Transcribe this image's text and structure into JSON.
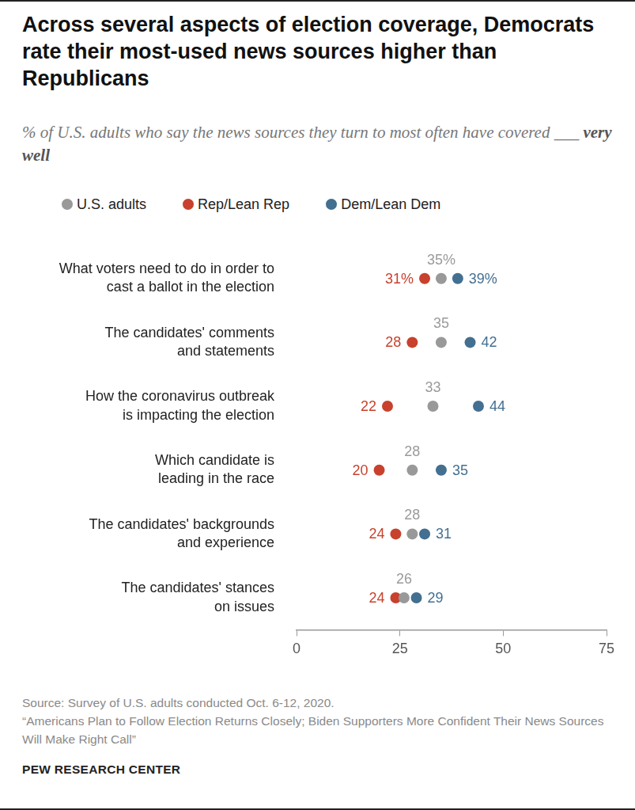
{
  "chart_data": {
    "type": "dot",
    "title": "Across several aspects of election coverage, Democrats rate their most-used news sources higher than Republicans",
    "subtitle": [
      "% of U.S. adults who say the news sources they turn to most often have covered ___",
      "very well"
    ],
    "categories": [
      "What voters need to do in order to\ncast a ballot in the election",
      "The candidates' comments\nand statements",
      "How the coronavirus outbreak\nis impacting the election",
      "Which candidate is\nleading in the race",
      "The candidates' backgrounds\nand experience",
      "The candidates' stances\non issues"
    ],
    "series": [
      {
        "name": "U.S. adults",
        "color": "#999999",
        "values": [
          35,
          35,
          33,
          28,
          28,
          26
        ],
        "value_labels": [
          "35%",
          "35",
          "33",
          "28",
          "28",
          "26"
        ]
      },
      {
        "name": "Rep/Lean Rep",
        "color": "#c8412d",
        "values": [
          31,
          28,
          22,
          20,
          24,
          24
        ],
        "value_labels": [
          "31%",
          "28",
          "22",
          "20",
          "24",
          "24"
        ]
      },
      {
        "name": "Dem/Lean Dem",
        "color": "#436f91",
        "values": [
          39,
          42,
          44,
          35,
          31,
          29
        ],
        "value_labels": [
          "39%",
          "42",
          "44",
          "35",
          "31",
          "29"
        ]
      }
    ],
    "xlim": [
      0,
      75
    ],
    "xticks": [
      0,
      25,
      50,
      75
    ],
    "grid": false,
    "orientation": "horizontal",
    "data_labels": true,
    "legend": "top-left",
    "marker": "circle",
    "notes": [
      "Source: Survey of U.S. adults conducted Oct. 6-12, 2020.",
      "“Americans Plan to Follow Election Returns Closely; Biden Supporters More Confident Their News Sources Will Make Right Call”"
    ],
    "credit": "PEW RESEARCH CENTER"
  }
}
